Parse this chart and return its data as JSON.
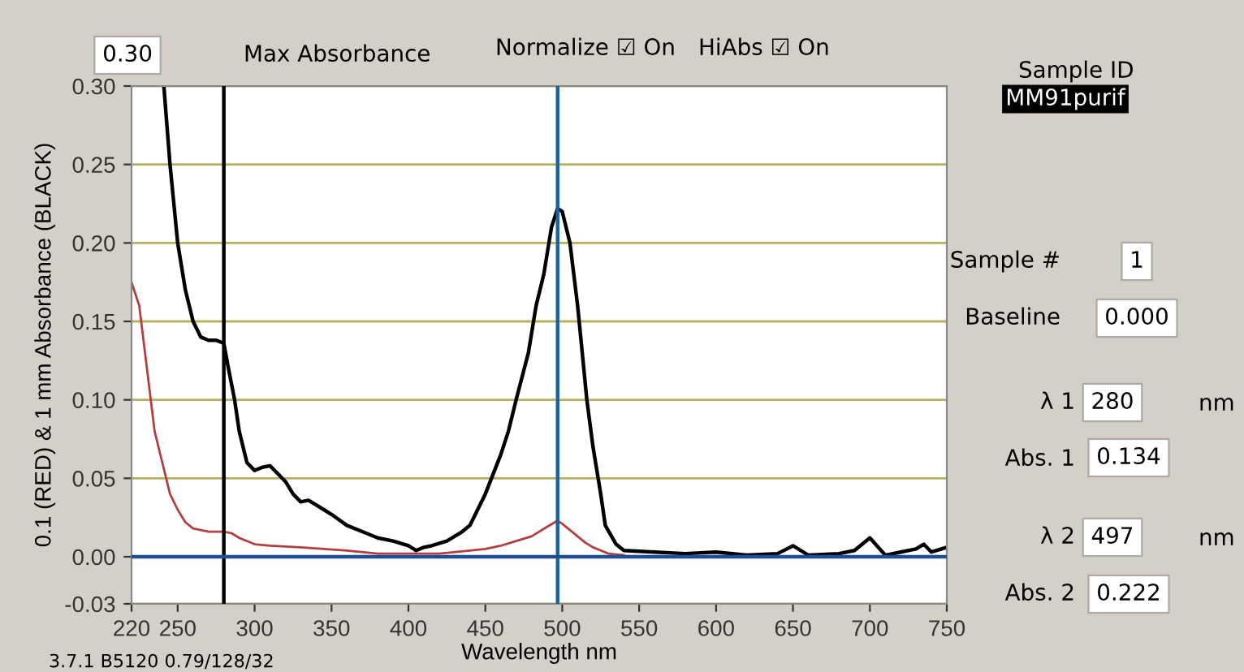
{
  "chart_data": {
    "type": "line",
    "xlabel": "Wavelength nm",
    "ylabel": "0.1 (RED) & 1 mm Absorbance (BLACK)",
    "xlim": [
      220,
      750
    ],
    "xticks": [
      220,
      250,
      300,
      350,
      400,
      450,
      500,
      550,
      600,
      650,
      700,
      750
    ],
    "ylim": [
      -0.03,
      0.3
    ],
    "yticks": [
      {
        "value": -0.03,
        "label": "-0.03"
      },
      {
        "value": 0,
        "label": "0.00"
      },
      {
        "value": 0.05,
        "label": "0.05"
      },
      {
        "value": 0.1,
        "label": "0.10"
      },
      {
        "value": 0.15,
        "label": "0.15"
      },
      {
        "value": 0.2,
        "label": "0.20"
      },
      {
        "value": 0.25,
        "label": "0.25"
      },
      {
        "value": 0.3,
        "label": "0.30"
      }
    ],
    "grid": "y",
    "legend": false,
    "marker": "none",
    "line_style": "solid",
    "series": [
      {
        "color": "#000000",
        "x": [
          241,
          245,
          250,
          255,
          260,
          265,
          270,
          275,
          280,
          283,
          287,
          290,
          295,
          300,
          305,
          310,
          315,
          320,
          325,
          330,
          335,
          340,
          345,
          350,
          360,
          370,
          380,
          390,
          400,
          405,
          410,
          415,
          425,
          435,
          440,
          450,
          460,
          465,
          470,
          478,
          483,
          488,
          493,
          497,
          500,
          505,
          510,
          512,
          516,
          520,
          525,
          528,
          535,
          540,
          560,
          580,
          600,
          620,
          640,
          650,
          660,
          680,
          690,
          700,
          710,
          720,
          730,
          735,
          740,
          750
        ],
        "values": [
          0.3,
          0.25,
          0.2,
          0.17,
          0.15,
          0.14,
          0.138,
          0.138,
          0.136,
          0.12,
          0.1,
          0.08,
          0.06,
          0.055,
          0.057,
          0.058,
          0.053,
          0.048,
          0.04,
          0.035,
          0.036,
          0.033,
          0.03,
          0.027,
          0.02,
          0.016,
          0.012,
          0.01,
          0.007,
          0.004,
          0.006,
          0.007,
          0.01,
          0.016,
          0.02,
          0.04,
          0.065,
          0.08,
          0.1,
          0.13,
          0.16,
          0.18,
          0.21,
          0.222,
          0.22,
          0.2,
          0.16,
          0.14,
          0.1,
          0.07,
          0.04,
          0.02,
          0.008,
          0.004,
          0.003,
          0.002,
          0.003,
          0.001,
          0.002,
          0.007,
          0.001,
          0.002,
          0.004,
          0.012,
          0.001,
          0.003,
          0.005,
          0.008,
          0.003,
          0.006
        ]
      },
      {
        "color": "#b04040",
        "x": [
          220,
          225,
          230,
          235,
          240,
          245,
          250,
          255,
          260,
          270,
          280,
          285,
          290,
          300,
          310,
          330,
          360,
          380,
          400,
          420,
          440,
          450,
          460,
          470,
          480,
          485,
          490,
          497,
          500,
          505,
          510,
          515,
          520,
          525,
          530,
          540
        ],
        "values": [
          0.175,
          0.16,
          0.12,
          0.08,
          0.06,
          0.04,
          0.03,
          0.022,
          0.018,
          0.016,
          0.016,
          0.015,
          0.012,
          0.008,
          0.007,
          0.006,
          0.004,
          0.002,
          0.002,
          0.002,
          0.004,
          0.005,
          0.007,
          0.01,
          0.013,
          0.016,
          0.019,
          0.023,
          0.021,
          0.017,
          0.013,
          0.009,
          0.006,
          0.004,
          0.002,
          0.001
        ]
      }
    ],
    "ref_lines": [
      {
        "axis": "x",
        "value": 280,
        "color": "#000000"
      },
      {
        "axis": "x",
        "value": 497,
        "color": "#1f5fa0"
      },
      {
        "axis": "y",
        "value": 0,
        "color": "#1f4f90"
      }
    ],
    "annotations": [
      "0.30",
      "Max Absorbance",
      "Normalize ☑ On",
      "HiAbs ☑ On",
      "Sample ID",
      "MM91purif",
      "Sample #",
      "1",
      "Baseline",
      "0.000",
      "λ 1",
      "280",
      "nm",
      "Abs. 1",
      "0.134",
      "λ 2",
      "497",
      "nm",
      "Abs. 2",
      "0.222",
      "3.7.1 B5120 0.79/128/32"
    ]
  }
}
